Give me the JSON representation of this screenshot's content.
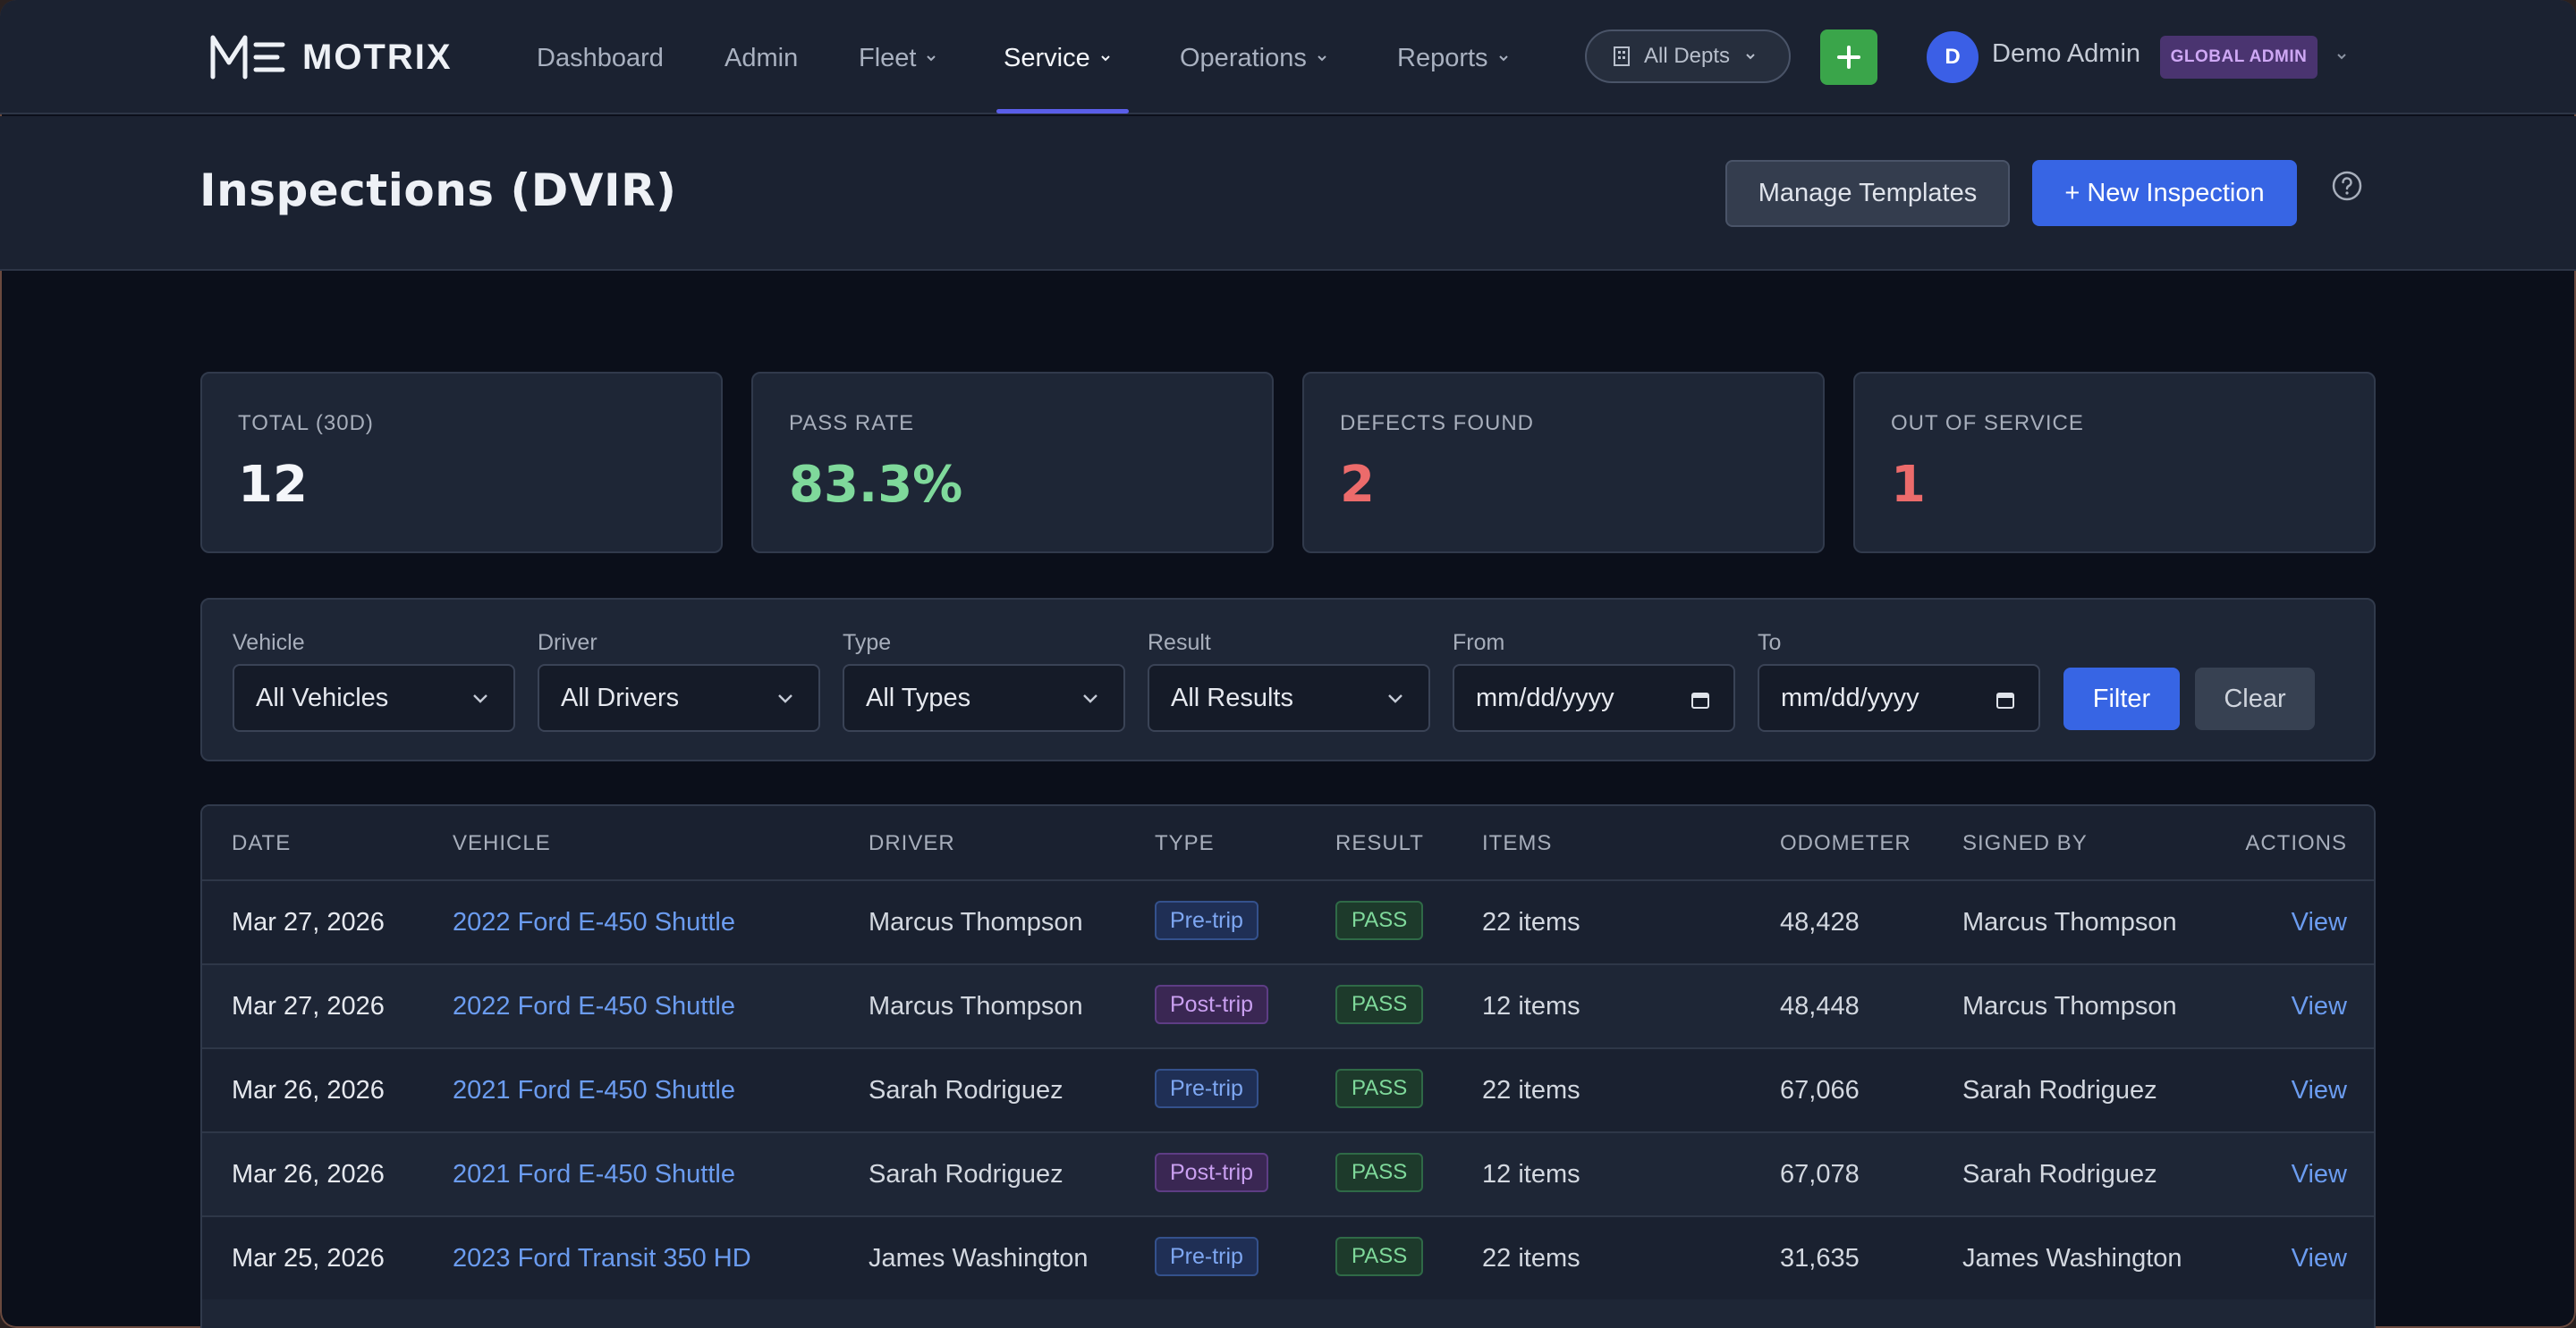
{
  "app": {
    "name": "MOTRIX"
  },
  "nav": {
    "items": [
      {
        "label": "Dashboard"
      },
      {
        "label": "Admin"
      },
      {
        "label": "Fleet"
      },
      {
        "label": "Service"
      },
      {
        "label": "Operations"
      },
      {
        "label": "Reports"
      }
    ],
    "active": "Service",
    "dept_selector": "All Depts",
    "user": {
      "initial": "D",
      "name": "Demo Admin",
      "role": "GLOBAL ADMIN"
    }
  },
  "colors": {
    "accent": "#3765e4",
    "pass": "#7fd99b",
    "danger": "#ec6b6b",
    "success_button": "#3aa54a"
  },
  "page": {
    "title": "Inspections (DVIR)",
    "manage_templates_label": "Manage Templates",
    "new_inspection_label": "+ New Inspection"
  },
  "stats": [
    {
      "label": "TOTAL (30D)",
      "value": "12",
      "color": "#f4f6fa"
    },
    {
      "label": "PASS RATE",
      "value": "83.3%",
      "color": "#7fd99b"
    },
    {
      "label": "DEFECTS FOUND",
      "value": "2",
      "color": "#ec6b6b"
    },
    {
      "label": "OUT OF SERVICE",
      "value": "1",
      "color": "#ec6b6b"
    }
  ],
  "filters": {
    "vehicle": {
      "label": "Vehicle",
      "value": "All Vehicles"
    },
    "driver": {
      "label": "Driver",
      "value": "All Drivers"
    },
    "type": {
      "label": "Type",
      "value": "All Types"
    },
    "result": {
      "label": "Result",
      "value": "All Results"
    },
    "from": {
      "label": "From",
      "value": "mm/dd/yyyy"
    },
    "to": {
      "label": "To",
      "value": "mm/dd/yyyy"
    },
    "filter_label": "Filter",
    "clear_label": "Clear"
  },
  "table": {
    "columns": [
      "DATE",
      "VEHICLE",
      "DRIVER",
      "TYPE",
      "RESULT",
      "ITEMS",
      "ODOMETER",
      "SIGNED BY",
      "ACTIONS"
    ],
    "rows": [
      {
        "date": "Mar 27, 2026",
        "vehicle": "2022 Ford E-450 Shuttle",
        "driver": "Marcus Thompson",
        "type": "Pre-trip",
        "result": "PASS",
        "items": "22 items",
        "odometer": "48,428",
        "signed_by": "Marcus Thompson",
        "action": "View"
      },
      {
        "date": "Mar 27, 2026",
        "vehicle": "2022 Ford E-450 Shuttle",
        "driver": "Marcus Thompson",
        "type": "Post-trip",
        "result": "PASS",
        "items": "12 items",
        "odometer": "48,448",
        "signed_by": "Marcus Thompson",
        "action": "View"
      },
      {
        "date": "Mar 26, 2026",
        "vehicle": "2021 Ford E-450 Shuttle",
        "driver": "Sarah Rodriguez",
        "type": "Pre-trip",
        "result": "PASS",
        "items": "22 items",
        "odometer": "67,066",
        "signed_by": "Sarah Rodriguez",
        "action": "View"
      },
      {
        "date": "Mar 26, 2026",
        "vehicle": "2021 Ford E-450 Shuttle",
        "driver": "Sarah Rodriguez",
        "type": "Post-trip",
        "result": "PASS",
        "items": "12 items",
        "odometer": "67,078",
        "signed_by": "Sarah Rodriguez",
        "action": "View"
      },
      {
        "date": "Mar 25, 2026",
        "vehicle": "2023 Ford Transit 350 HD",
        "driver": "James Washington",
        "type": "Pre-trip",
        "result": "PASS",
        "items": "22 items",
        "odometer": "31,635",
        "signed_by": "James Washington",
        "action": "View"
      }
    ]
  }
}
